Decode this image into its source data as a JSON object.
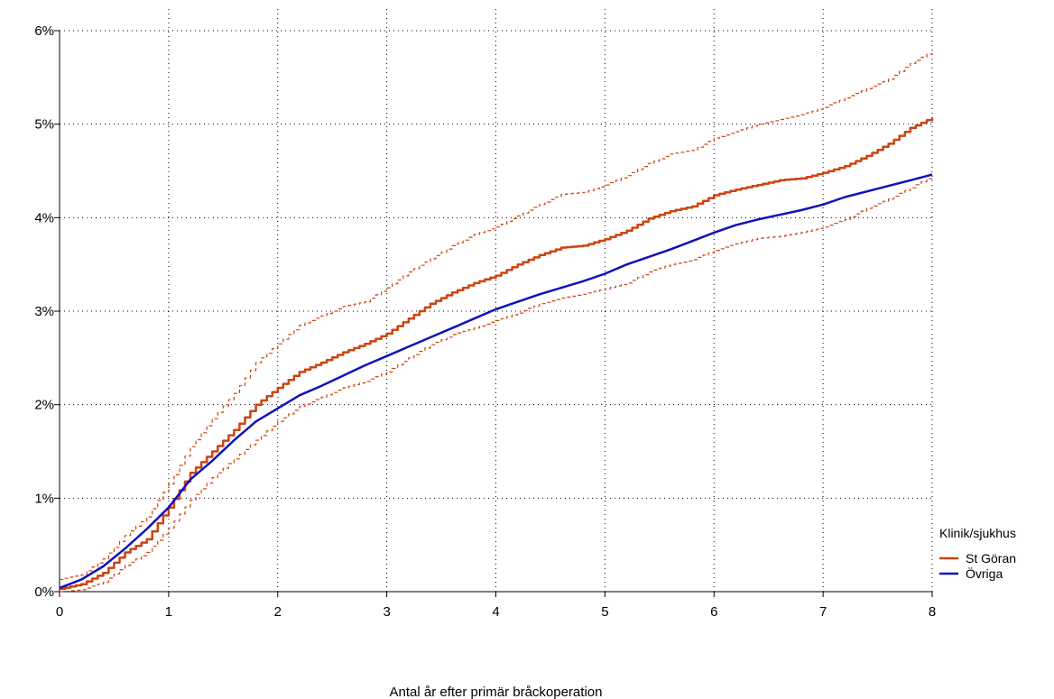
{
  "chart_data": {
    "type": "line",
    "title": "",
    "xlabel": "Antal år efter primär bråckoperation",
    "ylabel": "",
    "xlim": [
      0,
      8
    ],
    "ylim": [
      0,
      6
    ],
    "x_ticks": [
      "0",
      "1",
      "2",
      "3",
      "4",
      "5",
      "6",
      "7",
      "8"
    ],
    "y_ticks": [
      "0%",
      "1%",
      "2%",
      "3%",
      "4%",
      "5%",
      "6%"
    ],
    "grid": true,
    "legend": {
      "title": "Klinik/sjukhus",
      "placement": "right",
      "entries": [
        "St Göran",
        "Övriga"
      ]
    },
    "series": [
      {
        "name": "St Göran",
        "color": "#cc4411",
        "style": "step",
        "x": [
          0,
          0.2,
          0.4,
          0.6,
          0.8,
          1.0,
          1.2,
          1.4,
          1.6,
          1.8,
          2.0,
          2.2,
          2.4,
          2.6,
          2.8,
          3.0,
          3.2,
          3.4,
          3.6,
          3.8,
          4.0,
          4.2,
          4.4,
          4.6,
          4.8,
          5.0,
          5.2,
          5.4,
          5.6,
          5.8,
          6.0,
          6.2,
          6.4,
          6.6,
          6.8,
          7.0,
          7.2,
          7.4,
          7.6,
          7.8,
          8.0
        ],
        "y": [
          0.03,
          0.08,
          0.2,
          0.42,
          0.56,
          0.9,
          1.27,
          1.5,
          1.73,
          2.0,
          2.18,
          2.35,
          2.45,
          2.56,
          2.65,
          2.76,
          2.92,
          3.08,
          3.2,
          3.3,
          3.38,
          3.5,
          3.6,
          3.68,
          3.7,
          3.77,
          3.86,
          3.99,
          4.07,
          4.12,
          4.24,
          4.3,
          4.35,
          4.4,
          4.42,
          4.48,
          4.55,
          4.66,
          4.79,
          4.96,
          5.07
        ]
      },
      {
        "name": "",
        "color": "#cc4411",
        "style": "dashed",
        "x": [
          0,
          0.2,
          0.4,
          0.6,
          0.8,
          1.0,
          1.2,
          1.4,
          1.6,
          1.8,
          2.0,
          2.2,
          2.4,
          2.6,
          2.8,
          3.0,
          3.2,
          3.4,
          3.6,
          3.8,
          4.0,
          4.2,
          4.4,
          4.6,
          4.8,
          5.0,
          5.2,
          5.4,
          5.6,
          5.8,
          6.0,
          6.2,
          6.4,
          6.6,
          6.8,
          7.0,
          7.2,
          7.4,
          7.6,
          7.8,
          8.0
        ],
        "y": [
          0.13,
          0.18,
          0.35,
          0.6,
          0.8,
          1.15,
          1.55,
          1.85,
          2.12,
          2.45,
          2.65,
          2.85,
          2.95,
          3.05,
          3.1,
          3.25,
          3.42,
          3.56,
          3.7,
          3.82,
          3.9,
          4.02,
          4.14,
          4.25,
          4.27,
          4.35,
          4.45,
          4.58,
          4.68,
          4.72,
          4.85,
          4.92,
          5.0,
          5.05,
          5.1,
          5.18,
          5.28,
          5.38,
          5.48,
          5.65,
          5.78
        ]
      },
      {
        "name": "",
        "color": "#cc4411",
        "style": "dashed",
        "x": [
          0,
          0.2,
          0.4,
          0.6,
          0.8,
          1.0,
          1.2,
          1.4,
          1.6,
          1.8,
          2.0,
          2.2,
          2.4,
          2.6,
          2.8,
          3.0,
          3.2,
          3.4,
          3.6,
          3.8,
          4.0,
          4.2,
          4.4,
          4.6,
          4.8,
          5.0,
          5.2,
          5.4,
          5.6,
          5.8,
          6.0,
          6.2,
          6.4,
          6.6,
          6.8,
          7.0,
          7.2,
          7.4,
          7.6,
          7.8,
          8.0
        ],
        "y": [
          0.0,
          0.02,
          0.1,
          0.28,
          0.42,
          0.68,
          0.98,
          1.22,
          1.42,
          1.62,
          1.82,
          1.98,
          2.08,
          2.18,
          2.25,
          2.35,
          2.5,
          2.64,
          2.75,
          2.82,
          2.9,
          2.98,
          3.08,
          3.14,
          3.18,
          3.24,
          3.3,
          3.42,
          3.5,
          3.55,
          3.65,
          3.72,
          3.78,
          3.8,
          3.84,
          3.9,
          3.98,
          4.1,
          4.2,
          4.32,
          4.45
        ]
      },
      {
        "name": "Övriga",
        "color": "#1111bb",
        "style": "solid",
        "x": [
          0,
          0.2,
          0.4,
          0.6,
          0.8,
          1.0,
          1.2,
          1.4,
          1.6,
          1.8,
          2.0,
          2.2,
          2.4,
          2.6,
          2.8,
          3.0,
          3.2,
          3.4,
          3.6,
          3.8,
          4.0,
          4.2,
          4.4,
          4.6,
          4.8,
          5.0,
          5.2,
          5.4,
          5.6,
          5.8,
          6.0,
          6.2,
          6.4,
          6.6,
          6.8,
          7.0,
          7.2,
          7.4,
          7.6,
          7.8,
          8.0
        ],
        "y": [
          0.04,
          0.13,
          0.27,
          0.46,
          0.67,
          0.9,
          1.2,
          1.4,
          1.62,
          1.82,
          1.96,
          2.1,
          2.2,
          2.31,
          2.42,
          2.52,
          2.62,
          2.72,
          2.82,
          2.92,
          3.02,
          3.1,
          3.18,
          3.25,
          3.32,
          3.4,
          3.5,
          3.58,
          3.66,
          3.75,
          3.84,
          3.92,
          3.98,
          4.03,
          4.08,
          4.14,
          4.22,
          4.28,
          4.34,
          4.4,
          4.46
        ]
      }
    ]
  }
}
